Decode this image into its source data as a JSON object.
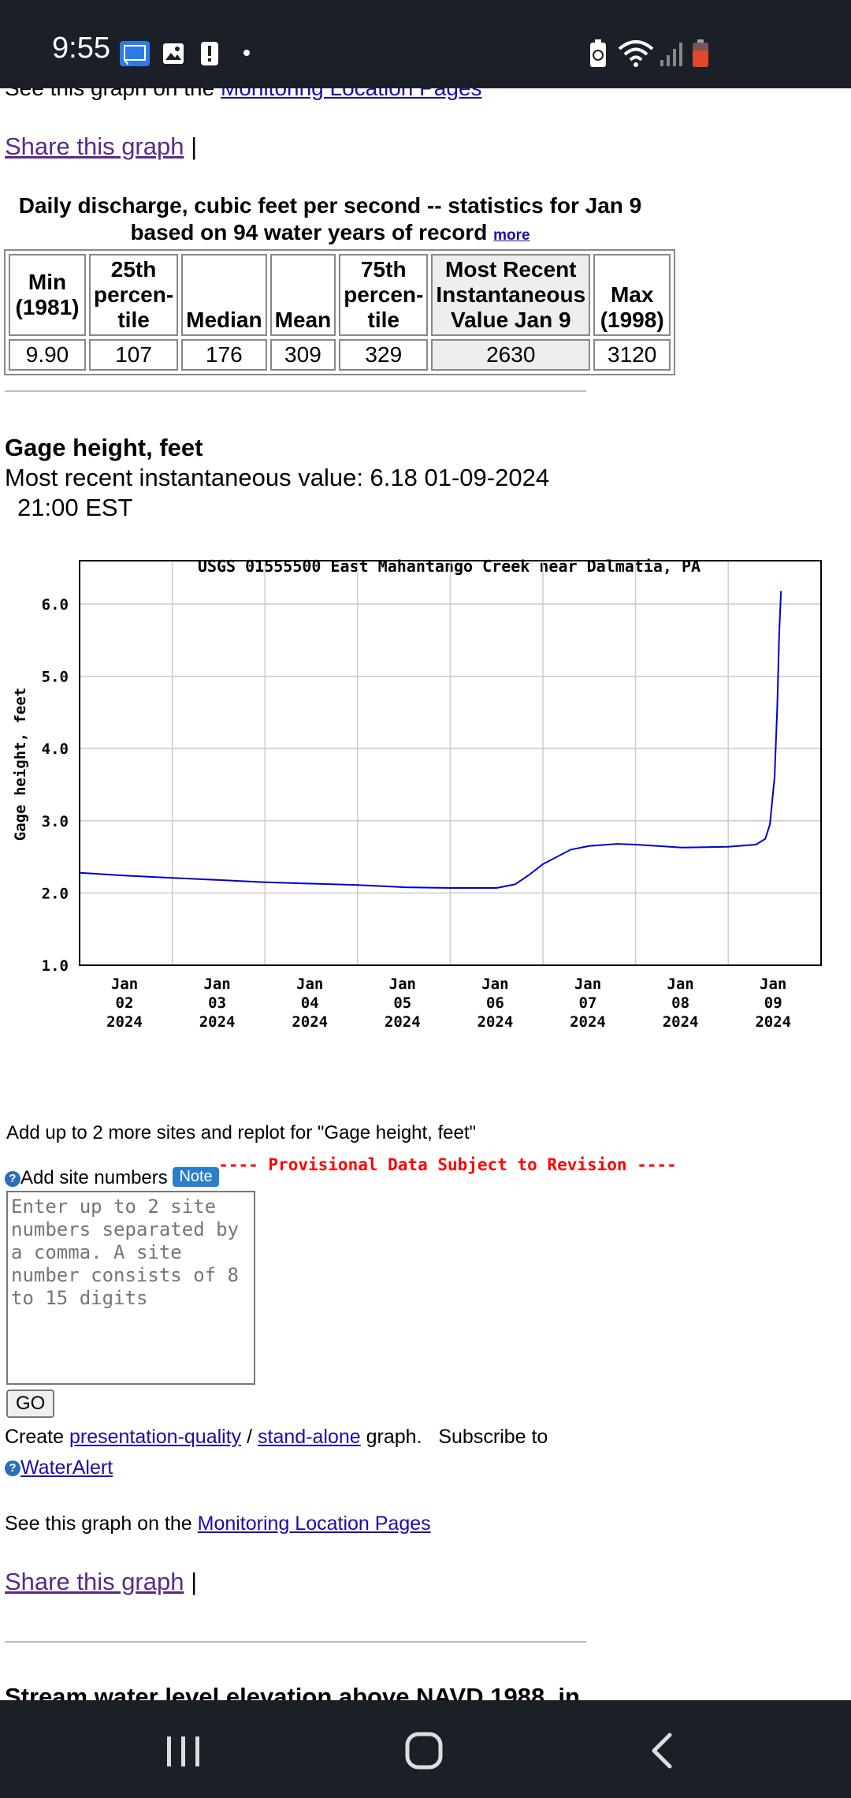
{
  "status_bar": {
    "time": "9:55",
    "icons": [
      "cast-icon",
      "gallery-icon",
      "alert-icon",
      "dot-icon",
      "battery-saver-icon",
      "wifi-icon",
      "signal-icon",
      "battery-low-icon"
    ]
  },
  "top_section": {
    "partial_text": "See this graph on the ",
    "partial_link": "Monitoring Location Pages",
    "share_link": "Share this graph",
    "share_sep": "|"
  },
  "stats_table": {
    "caption_line1": "Daily discharge, cubic feet per second -- statistics for Jan 9",
    "caption_line2": "based on 94 water years of record",
    "more_link": "more",
    "headers": [
      [
        "Min",
        "(1981)"
      ],
      [
        "25th",
        "percen-",
        "tile"
      ],
      [
        "Median"
      ],
      [
        "Mean"
      ],
      [
        "75th",
        "percen-",
        "tile"
      ],
      [
        "Most Recent",
        "Instantaneous",
        "Value Jan 9"
      ],
      [
        "Max",
        "(1998)"
      ]
    ],
    "values": [
      "9.90",
      "107",
      "176",
      "309",
      "329",
      "2630",
      "3120"
    ]
  },
  "gage_section": {
    "title": "Gage height, feet",
    "recent_line1": "Most recent instantaneous value: 6.18 01-09-2024",
    "recent_line2": "21:00 EST"
  },
  "chart_data": {
    "type": "line",
    "title": "USGS 01555500 East Mahantango Creek near Dalmatia, PA",
    "ylabel": "Gage height, feet",
    "xlabel": "",
    "ylim": [
      1.0,
      6.6
    ],
    "yticks": [
      "1.0",
      "2.0",
      "3.0",
      "4.0",
      "5.0",
      "6.0"
    ],
    "xtick_labels": [
      [
        "Jan",
        "02",
        "2024"
      ],
      [
        "Jan",
        "03",
        "2024"
      ],
      [
        "Jan",
        "04",
        "2024"
      ],
      [
        "Jan",
        "05",
        "2024"
      ],
      [
        "Jan",
        "06",
        "2024"
      ],
      [
        "Jan",
        "07",
        "2024"
      ],
      [
        "Jan",
        "08",
        "2024"
      ],
      [
        "Jan",
        "09",
        "2024"
      ]
    ],
    "grid": true,
    "line_color": "#0000cc",
    "note": "---- Provisional Data Subject to Revision ----",
    "note_color": "#ff0000",
    "series": [
      {
        "x_days_from_jan02": [
          0,
          0.5,
          1.0,
          1.5,
          2.0,
          2.5,
          3.0,
          3.5,
          4.0,
          4.2,
          4.5,
          4.7,
          4.85,
          5.0,
          5.3,
          5.5,
          5.8,
          6.0,
          6.5,
          7.0,
          7.3,
          7.4,
          7.45,
          7.5,
          7.53,
          7.55,
          7.57
        ],
        "y": [
          2.28,
          2.24,
          2.21,
          2.18,
          2.15,
          2.13,
          2.11,
          2.08,
          2.07,
          2.07,
          2.07,
          2.12,
          2.25,
          2.4,
          2.6,
          2.65,
          2.68,
          2.67,
          2.63,
          2.64,
          2.67,
          2.75,
          2.95,
          3.6,
          4.6,
          5.6,
          6.18
        ]
      }
    ]
  },
  "replot": {
    "text": "Add up to 2 more sites and replot for \"Gage height, feet\"",
    "add_label": "Add site numbers",
    "note_badge": "Note",
    "textarea_placeholder": "Enter up to 2 site numbers separated by a comma. A site number consists of 8 to 15 digits",
    "go": "GO"
  },
  "footer": {
    "create": "Create ",
    "presentation_link": "presentation-quality",
    "slash": " / ",
    "standalone_link": "stand-alone",
    "graph_sub": " graph.   Subscribe to",
    "wateralert_link": "WaterAlert",
    "see_text": "See this graph on the ",
    "monitoring_link": "Monitoring Location Pages",
    "share_link": "Share this graph",
    "share_sep": "|",
    "next_heading_partial": "Stream water level elevation above NAVD 1988, in"
  }
}
